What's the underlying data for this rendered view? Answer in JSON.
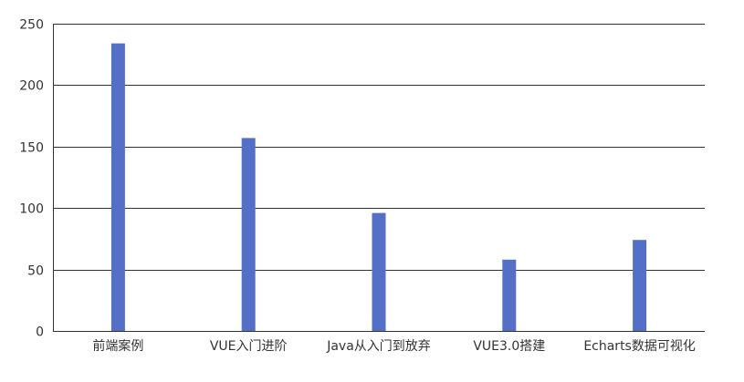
{
  "chart_data": {
    "type": "bar",
    "categories": [
      "前端案例",
      "VUE入门进阶",
      "Java从入门到放弃",
      "VUE3.0搭建",
      "Echarts数据可视化"
    ],
    "series": [
      {
        "values": [
          234,
          157,
          96,
          58,
          74
        ]
      }
    ],
    "title": "",
    "xlabel": "",
    "ylabel": "",
    "ylim": [
      0,
      250
    ],
    "yticks": [
      0,
      50,
      100,
      150,
      200,
      250
    ],
    "grid": true,
    "legend": "none",
    "colors": {
      "bar": "#5470C6",
      "gridline": "#333333",
      "axis": "#333333",
      "label": "#333333"
    }
  }
}
